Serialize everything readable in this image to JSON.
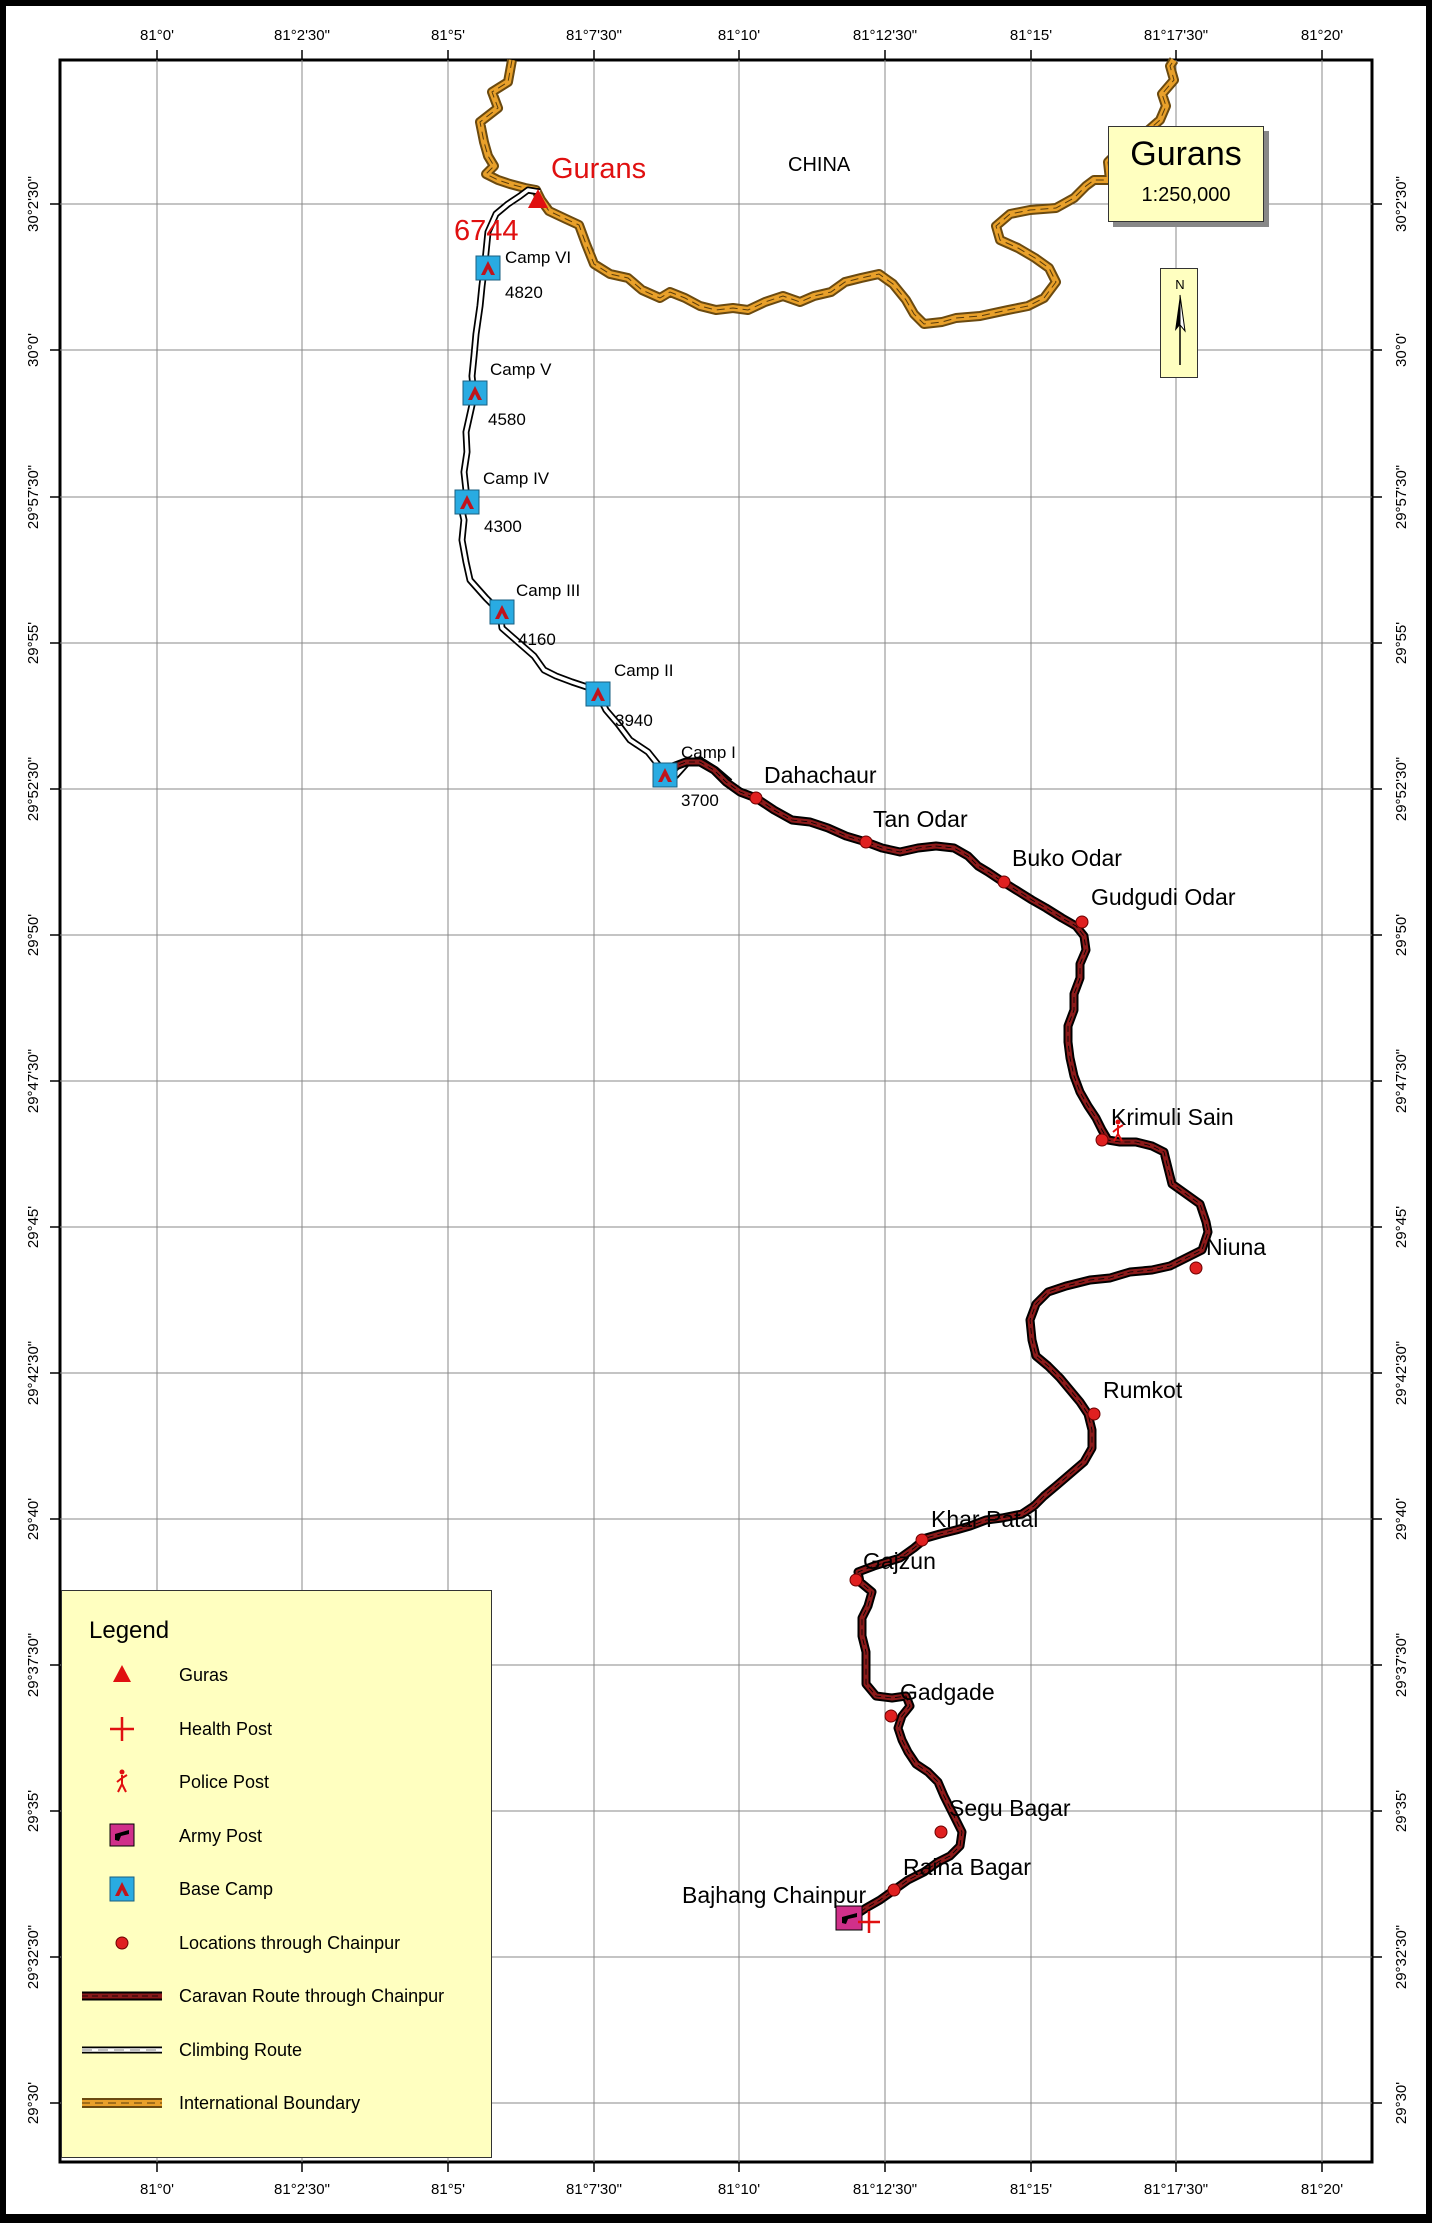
{
  "map_title": "Gurans",
  "scale": "1:250,000",
  "north_label": "N",
  "country_label": "CHINA",
  "peak": {
    "name": "Gurans",
    "elevation": "6744"
  },
  "lon_ticks": [
    "81°0'",
    "81°2'30\"",
    "81°5'",
    "81°7'30\"",
    "81°10'",
    "81°12'30\"",
    "81°15'",
    "81°17'30\"",
    "81°20'"
  ],
  "lat_ticks": [
    "30°2'30\"",
    "30°0'",
    "29°57'30\"",
    "29°55'",
    "29°52'30\"",
    "29°50'",
    "29°47'30\"",
    "29°45'",
    "29°42'30\"",
    "29°40'",
    "29°37'30\"",
    "29°35'",
    "29°32'30\"",
    "29°30'"
  ],
  "camps": [
    {
      "name": "Camp VI",
      "elev": "4820"
    },
    {
      "name": "Camp V",
      "elev": "4580"
    },
    {
      "name": "Camp IV",
      "elev": "4300"
    },
    {
      "name": "Camp III",
      "elev": "4160"
    },
    {
      "name": "Camp II",
      "elev": "3940"
    },
    {
      "name": "Camp I",
      "elev": "3700"
    }
  ],
  "locations": [
    "Dahachaur",
    "Tan Odar",
    "Buko Odar",
    "Gudgudi Odar",
    "Krimuli Sain",
    "Niuna",
    "Rumkot",
    "Khar Patal",
    "Gajzun",
    "Gadgade",
    "Segu Bagar",
    "Raina Bagar",
    "Bajhang Chainpur"
  ],
  "legend": {
    "title": "Legend",
    "items": [
      {
        "label": "Guras",
        "symbol": "triangle-icon"
      },
      {
        "label": "Health Post",
        "symbol": "cross-icon"
      },
      {
        "label": "Police Post",
        "symbol": "police-icon"
      },
      {
        "label": "Army Post",
        "symbol": "army-icon"
      },
      {
        "label": "Base Camp",
        "symbol": "tent-icon"
      },
      {
        "label": "Locations through Chainpur",
        "symbol": "dot-icon"
      },
      {
        "label": "Caravan Route through Chainpur",
        "symbol": "caravan-line-icon"
      },
      {
        "label": "Climbing Route",
        "symbol": "climbing-line-icon"
      },
      {
        "label": "International Boundary",
        "symbol": "boundary-line-icon"
      }
    ]
  },
  "colors": {
    "caravan": "#8b1a1a",
    "boundary": "#e8a02a",
    "peak": "#e01010",
    "camp": "#29abe2",
    "army": "#d0308a",
    "panel": "#ffffc0"
  }
}
